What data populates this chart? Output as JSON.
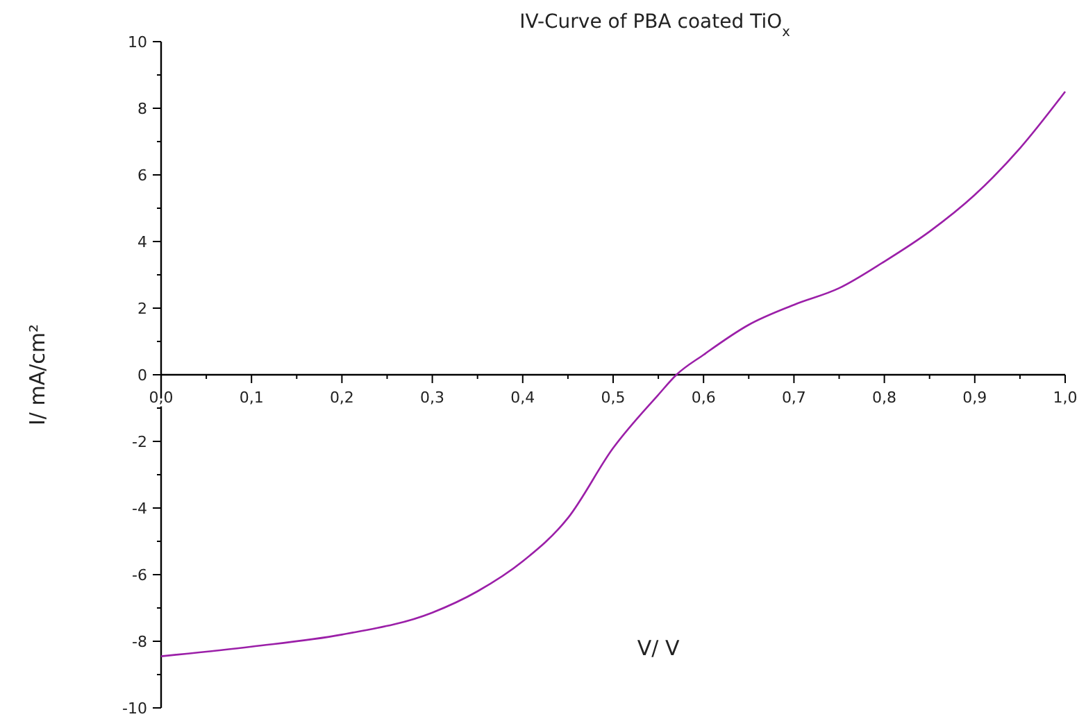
{
  "chart_data": {
    "type": "line",
    "title": "IV-Curve of PBA coated TiO$_{x}$",
    "xlabel": "V/ V",
    "ylabel": "I/ mA/cm²",
    "xlim": [
      0,
      1
    ],
    "ylim": [
      -10,
      10
    ],
    "xticks": [
      {
        "value": 0,
        "label": "0,0"
      },
      {
        "value": 0.05,
        "label": null
      },
      {
        "value": 0.1,
        "label": "0,1"
      },
      {
        "value": 0.15,
        "label": null
      },
      {
        "value": 0.2,
        "label": "0,2"
      },
      {
        "value": 0.25,
        "label": null
      },
      {
        "value": 0.3,
        "label": "0,3"
      },
      {
        "value": 0.35,
        "label": null
      },
      {
        "value": 0.4,
        "label": "0,4"
      },
      {
        "value": 0.45,
        "label": null
      },
      {
        "value": 0.5,
        "label": "0,5"
      },
      {
        "value": 0.55,
        "label": null
      },
      {
        "value": 0.6,
        "label": "0,6"
      },
      {
        "value": 0.65,
        "label": null
      },
      {
        "value": 0.7,
        "label": "0,7"
      },
      {
        "value": 0.75,
        "label": null
      },
      {
        "value": 0.8,
        "label": "0,8"
      },
      {
        "value": 0.85,
        "label": null
      },
      {
        "value": 0.9,
        "label": "0,9"
      },
      {
        "value": 0.95,
        "label": null
      },
      {
        "value": 1,
        "label": "1,0"
      }
    ],
    "yticks": [
      -10,
      {
        "value": -9,
        "label": null
      },
      -8,
      {
        "value": -7,
        "label": null
      },
      -6,
      {
        "value": -5,
        "label": null
      },
      -4,
      {
        "value": -3,
        "label": null
      },
      -2,
      {
        "value": -1,
        "label": null
      },
      0,
      {
        "value": 1,
        "label": null
      },
      2,
      {
        "value": 3,
        "label": null
      },
      4,
      {
        "value": 5,
        "label": null
      },
      6,
      {
        "value": 7,
        "label": null
      },
      8,
      {
        "value": 9,
        "label": null
      },
      10
    ],
    "x": [
      0,
      0.1,
      0.2,
      0.3,
      0.35,
      0.4,
      0.45,
      0.5,
      0.55,
      0.57,
      0.6,
      0.65,
      0.7,
      0.75,
      0.8,
      0.85,
      0.9,
      0.95,
      1
    ],
    "series": [
      {
        "color": "#9b1fa8",
        "values": [
          -8.45,
          -8.16,
          -7.8,
          -7.14,
          -6.5,
          -5.6,
          -4.3,
          -2.2,
          -0.6,
          0,
          0.6,
          1.5,
          2.1,
          2.6,
          3.4,
          4.3,
          5.4,
          6.8,
          8.5
        ]
      }
    ],
    "grid": false,
    "marker": "none",
    "line_style": "solid"
  }
}
